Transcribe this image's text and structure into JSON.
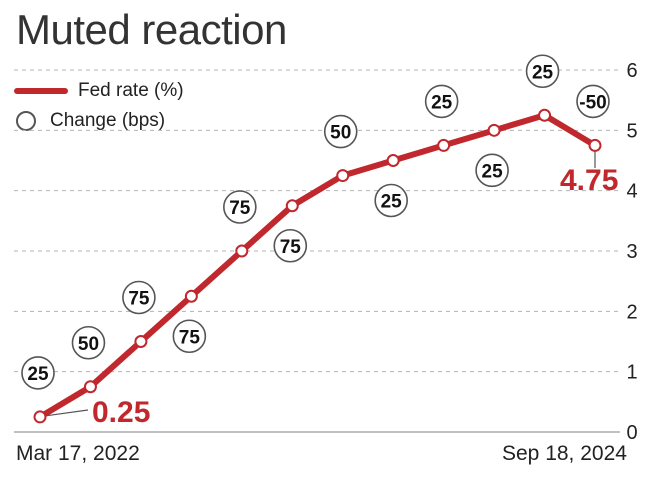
{
  "title": "Muted reaction",
  "legend": {
    "line_label": "Fed rate (%)",
    "circle_label": "Change (bps)"
  },
  "colors": {
    "line": "#c0282d",
    "highlight_text": "#c0282d",
    "gridline": "#b3b3b3",
    "circle_border": "#555555"
  },
  "x_start_label": "Mar 17, 2022",
  "x_end_label": "Sep 18, 2024",
  "chart_data": {
    "type": "line",
    "series": [
      {
        "name": "Fed rate (%)",
        "values": [
          0.25,
          0.75,
          1.5,
          2.25,
          3.0,
          3.75,
          4.25,
          4.5,
          4.75,
          5.0,
          5.25,
          4.75
        ]
      }
    ],
    "changes_bps": [
      "25",
      "50",
      "75",
      "75",
      "75",
      "75",
      "50",
      "25",
      "25",
      "25",
      "25",
      "-50"
    ],
    "highlight_labels": [
      "0.25",
      "4.75"
    ],
    "y_ticks": [
      "0",
      "1",
      "2",
      "3",
      "4",
      "5",
      "6"
    ],
    "ylim": [
      0,
      6
    ],
    "grid": true,
    "legend_position": "top-left"
  }
}
